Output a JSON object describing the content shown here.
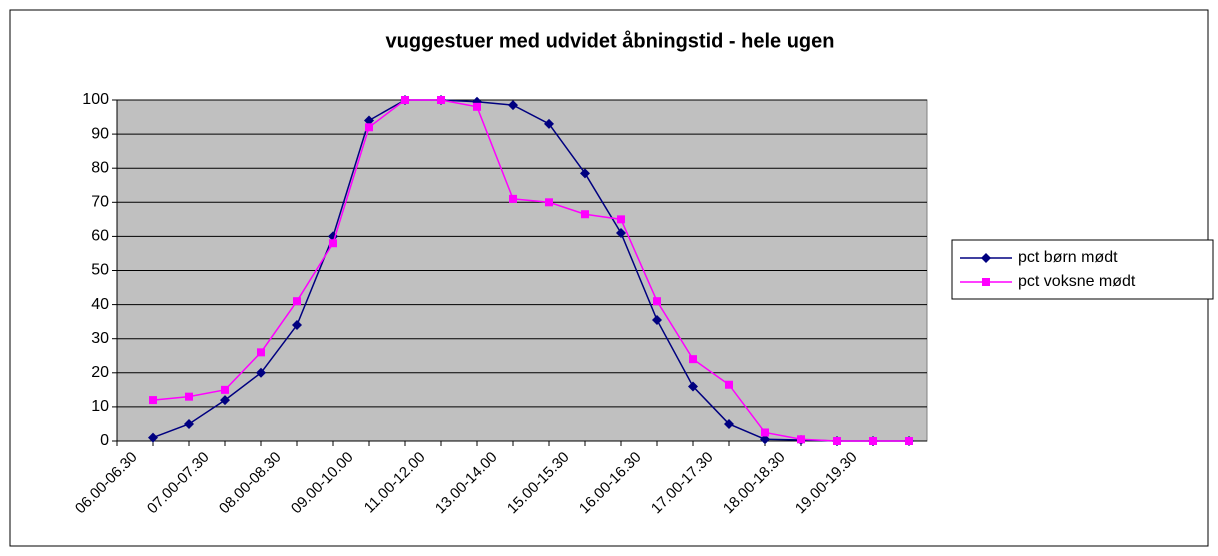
{
  "chart_data": {
    "type": "line",
    "title": "vuggestuer med udvidet åbningstid - hele ugen",
    "categories": [
      "06.00-06.30",
      null,
      "07.00-07.30",
      null,
      "08.00-08.30",
      null,
      "09.00-10.00",
      null,
      "11.00-12.00",
      null,
      "13.00-14.00",
      null,
      "15.00-15.30",
      null,
      "16.00-16.30",
      null,
      "17.00-17.30",
      null,
      "18.00-18.30",
      null,
      "19.00-19.30",
      null
    ],
    "series": [
      {
        "name": "pct børn mødt",
        "color": "#000080",
        "marker": "diamond",
        "values": [
          1,
          5,
          12,
          20,
          34,
          60,
          94,
          100,
          100,
          99.5,
          98.5,
          93,
          78.5,
          61,
          35.5,
          16,
          5,
          0.5,
          0.3,
          0,
          0,
          0
        ]
      },
      {
        "name": "pct voksne mødt",
        "color": "#ff00ff",
        "marker": "square",
        "values": [
          12,
          13,
          15,
          26,
          41,
          58,
          92,
          100,
          100,
          98,
          71,
          70,
          66.5,
          65,
          41,
          24,
          16.5,
          2.5,
          0.5,
          0,
          0,
          0
        ]
      }
    ],
    "ylim": [
      0,
      100
    ],
    "yticks": [
      0,
      10,
      20,
      30,
      40,
      50,
      60,
      70,
      80,
      90,
      100
    ],
    "grid": true,
    "legend": "right",
    "plot_background": "#c0c0c0"
  }
}
